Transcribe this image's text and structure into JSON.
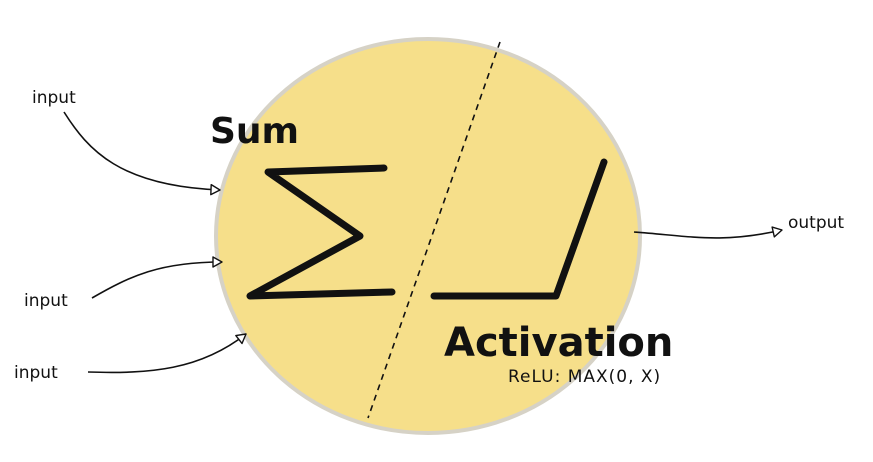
{
  "labels": {
    "input_top": "input",
    "input_mid": "input",
    "input_bottom": "input",
    "output": "output",
    "sum": "Sum",
    "activation": "Activation",
    "relu": "ReLU: MAX(0, X)"
  },
  "colors": {
    "neuron_fill": "#f6df8a",
    "neuron_stroke": "#d6d2c6",
    "ink": "#111111"
  }
}
